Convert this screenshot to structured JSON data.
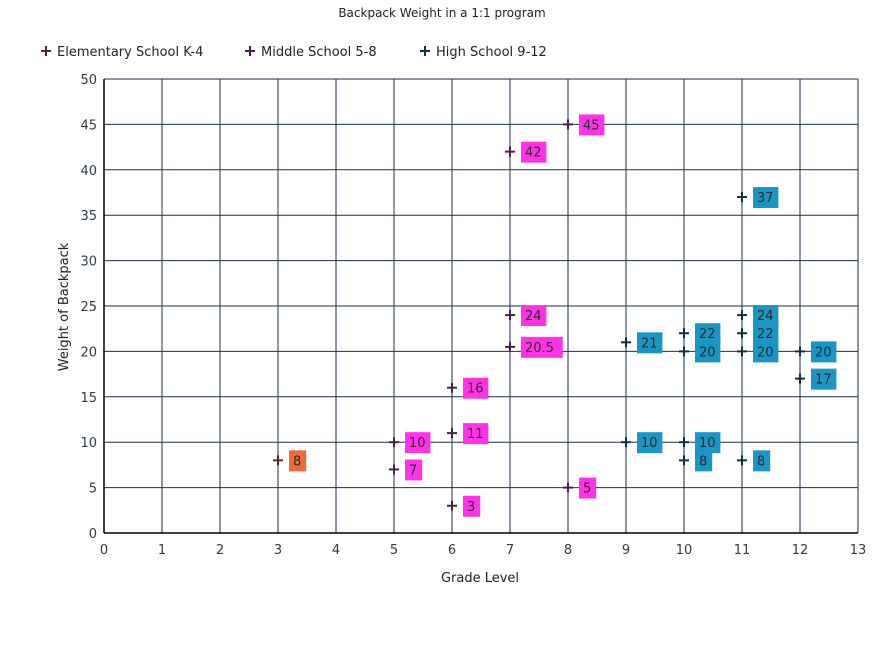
{
  "colors": {
    "elementary_label": "#ee6a3c",
    "middle_label": "#ff33e6",
    "high_label": "#1a95c4",
    "gridline": "#1b2f4a",
    "axis_text": "#2f3b45",
    "elementary_marker": "#5a2a2a",
    "middle_marker": "#4a2050",
    "high_marker": "#103040"
  },
  "chart_data": {
    "type": "scatter",
    "title": "Backpack Weight in a 1:1 program",
    "xlabel": "Grade Level",
    "ylabel": "Weight of Backpack",
    "xlim": [
      0,
      13
    ],
    "ylim": [
      0,
      50
    ],
    "xticks": [
      0,
      1,
      2,
      3,
      4,
      5,
      6,
      7,
      8,
      9,
      10,
      11,
      12,
      13
    ],
    "yticks": [
      0,
      5,
      10,
      15,
      20,
      25,
      30,
      35,
      40,
      45,
      50
    ],
    "grid": true,
    "legend_position": "top",
    "series": [
      {
        "name": "Elementary School K-4",
        "color_key": "elementary",
        "points": [
          {
            "x": 3,
            "y": 8,
            "label": "8"
          }
        ]
      },
      {
        "name": "Middle School 5-8",
        "color_key": "middle",
        "points": [
          {
            "x": 5,
            "y": 10,
            "label": "10"
          },
          {
            "x": 5,
            "y": 7,
            "label": "7"
          },
          {
            "x": 6,
            "y": 16,
            "label": "16"
          },
          {
            "x": 6,
            "y": 11,
            "label": "11"
          },
          {
            "x": 6,
            "y": 3,
            "label": "3"
          },
          {
            "x": 7,
            "y": 42,
            "label": "42"
          },
          {
            "x": 7,
            "y": 24,
            "label": "24"
          },
          {
            "x": 7,
            "y": 20.5,
            "label": "20.5"
          },
          {
            "x": 8,
            "y": 45,
            "label": "45"
          },
          {
            "x": 8,
            "y": 5,
            "label": "5"
          }
        ]
      },
      {
        "name": "High School 9-12",
        "color_key": "high",
        "points": [
          {
            "x": 9,
            "y": 21,
            "label": "21"
          },
          {
            "x": 9,
            "y": 10,
            "label": "10"
          },
          {
            "x": 10,
            "y": 22,
            "label": "22"
          },
          {
            "x": 10,
            "y": 20,
            "label": "20"
          },
          {
            "x": 10,
            "y": 10,
            "label": "10"
          },
          {
            "x": 10,
            "y": 8,
            "label": "8"
          },
          {
            "x": 11,
            "y": 37,
            "label": "37"
          },
          {
            "x": 11,
            "y": 24,
            "label": "24"
          },
          {
            "x": 11,
            "y": 22,
            "label": "22"
          },
          {
            "x": 11,
            "y": 20,
            "label": "20"
          },
          {
            "x": 11,
            "y": 8,
            "label": "8"
          },
          {
            "x": 12,
            "y": 20,
            "label": "20"
          },
          {
            "x": 12,
            "y": 17,
            "label": "17"
          }
        ]
      }
    ]
  }
}
